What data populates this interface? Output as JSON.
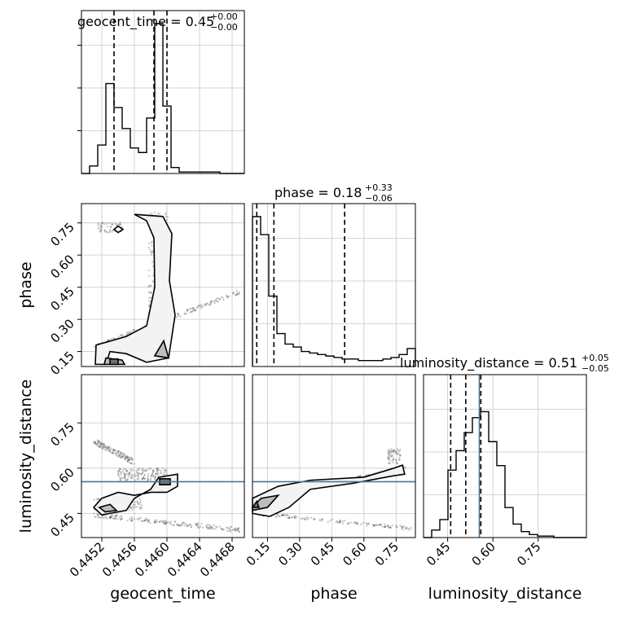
{
  "chart_data": {
    "type": "corner",
    "parameters": [
      "geocent_time",
      "phase",
      "luminosity_distance"
    ],
    "axis_labels": {
      "geocent_time": "geocent_time",
      "phase": "phase",
      "luminosity_distance": "luminosity_distance"
    },
    "titles": [
      {
        "param": "geocent_time",
        "text": "geocent_time = 0.45",
        "sup": "+0.00",
        "sub": "−0.00"
      },
      {
        "param": "phase",
        "text": "phase = 0.18",
        "sup": "+0.33",
        "sub": "−0.06"
      },
      {
        "param": "luminosity_distance",
        "text": "luminosity_distance = 0.51",
        "sup": "+0.05",
        "sub": "−0.05"
      }
    ],
    "ranges": {
      "geocent_time": [
        0.44495,
        0.44695
      ],
      "phase": [
        0.08,
        0.84
      ],
      "luminosity_distance": [
        0.37,
        0.91
      ]
    },
    "ticks": {
      "geocent_time": {
        "values": [
          0.4452,
          0.4456,
          0.446,
          0.4464,
          0.4468
        ],
        "labels": [
          "0.4452",
          "0.4456",
          "0.4460",
          "0.4464",
          "0.4468"
        ]
      },
      "phase": {
        "values": [
          0.15,
          0.3,
          0.45,
          0.6,
          0.75
        ],
        "labels": [
          "0.15",
          "0.30",
          "0.45",
          "0.60",
          "0.75"
        ]
      },
      "luminosity_distance": {
        "values": [
          0.45,
          0.6,
          0.75
        ],
        "labels": [
          "0.45",
          "0.60",
          "0.75"
        ]
      }
    },
    "quantiles": {
      "geocent_time": [
        0.44535,
        0.44584,
        0.446
      ],
      "phase": [
        0.1,
        0.18,
        0.51
      ],
      "luminosity_distance": [
        0.46,
        0.51,
        0.56
      ]
    },
    "truths": {
      "luminosity_distance": 0.555
    },
    "truth_color": "#3b77b0",
    "hist_1d": {
      "geocent_time": [
        0.0,
        0.05,
        0.19,
        0.6,
        0.44,
        0.3,
        0.17,
        0.14,
        0.37,
        1.0,
        0.45,
        0.04,
        0.01,
        0.01,
        0.01,
        0.01,
        0.01,
        0.0,
        0.0,
        0.0
      ],
      "phase": [
        1.0,
        0.88,
        0.47,
        0.22,
        0.15,
        0.13,
        0.1,
        0.09,
        0.08,
        0.07,
        0.06,
        0.05,
        0.05,
        0.04,
        0.04,
        0.04,
        0.05,
        0.06,
        0.08,
        0.12
      ],
      "luminosity_distance": [
        0.0,
        0.05,
        0.12,
        0.45,
        0.58,
        0.7,
        0.8,
        0.84,
        0.64,
        0.48,
        0.2,
        0.09,
        0.04,
        0.02,
        0.01,
        0.01,
        0.0,
        0.0,
        0.0,
        0.0
      ]
    },
    "grid": true,
    "colors": {
      "contour": "#000000",
      "points": "#555555",
      "fill_light": "#f3f3f3",
      "fill_mid": "#bdbdbd",
      "fill_dark": "#707070"
    }
  }
}
